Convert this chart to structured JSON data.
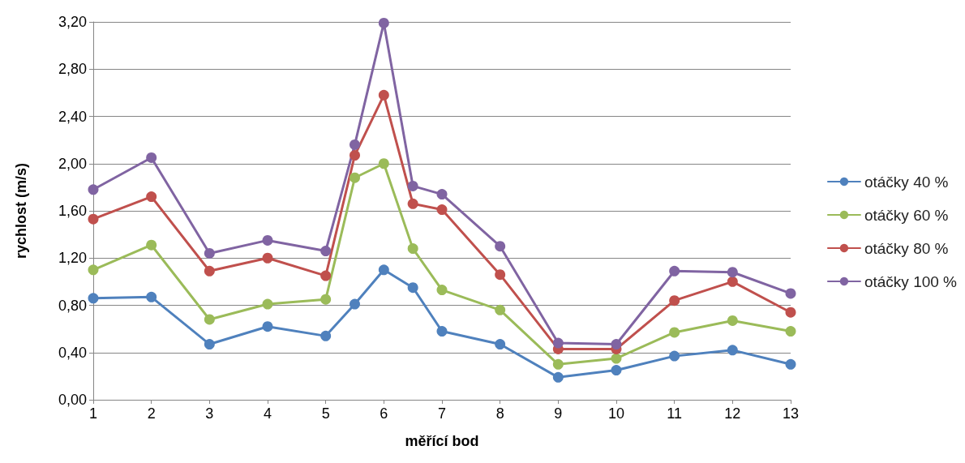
{
  "chart_data": {
    "type": "line",
    "xlabel": "měřící bod",
    "ylabel": "rychlost (m/s)",
    "x": [
      1,
      2,
      3,
      4,
      5,
      5.5,
      6,
      6.5,
      7,
      8,
      9,
      10,
      11,
      12,
      13
    ],
    "xlim": [
      1,
      13
    ],
    "xticks": [
      1,
      2,
      3,
      4,
      5,
      6,
      7,
      8,
      9,
      10,
      11,
      12,
      13
    ],
    "ylim": [
      0,
      3.2
    ],
    "yticks": [
      {
        "value": 0,
        "label": "0,00"
      },
      {
        "value": 0.4,
        "label": "0,40"
      },
      {
        "value": 0.8,
        "label": "0,80"
      },
      {
        "value": 1.2,
        "label": "1,20"
      },
      {
        "value": 1.6,
        "label": "1,60"
      },
      {
        "value": 2,
        "label": "2,00"
      },
      {
        "value": 2.4,
        "label": "2,40"
      },
      {
        "value": 2.8,
        "label": "2,80"
      },
      {
        "value": 3.2,
        "label": "3,20"
      }
    ],
    "grid": "y",
    "legend": "right",
    "marker": "circle",
    "line_style": "solid",
    "series": [
      {
        "name": "otáčky 40 %",
        "color": "#4f81bd",
        "values": [
          0.86,
          0.87,
          0.47,
          0.62,
          0.54,
          0.81,
          1.1,
          0.95,
          0.58,
          0.47,
          0.19,
          0.25,
          0.37,
          0.42,
          0.3
        ]
      },
      {
        "name": "otáčky 60 %",
        "color": "#9bbb59",
        "values": [
          1.1,
          1.31,
          0.68,
          0.81,
          0.85,
          1.88,
          2.0,
          1.28,
          0.93,
          0.76,
          0.3,
          0.35,
          0.57,
          0.67,
          0.58
        ]
      },
      {
        "name": "otáčky 80 %",
        "color": "#c0504d",
        "values": [
          1.53,
          1.72,
          1.09,
          1.2,
          1.05,
          2.07,
          2.58,
          1.66,
          1.61,
          1.06,
          0.43,
          0.43,
          0.84,
          1.0,
          0.74
        ]
      },
      {
        "name": "otáčky 100 %",
        "color": "#8064a2",
        "values": [
          1.78,
          2.05,
          1.24,
          1.35,
          1.26,
          2.16,
          3.19,
          1.81,
          1.74,
          1.3,
          0.48,
          0.47,
          1.09,
          1.08,
          0.9
        ]
      }
    ]
  }
}
